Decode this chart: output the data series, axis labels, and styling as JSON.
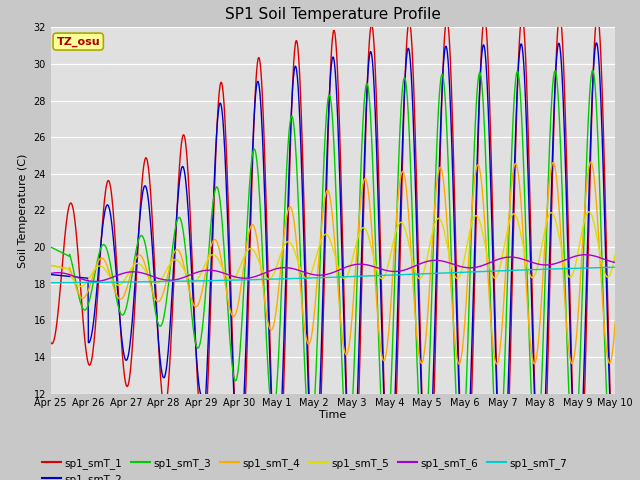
{
  "title": "SP1 Soil Temperature Profile",
  "xlabel": "Time",
  "ylabel": "Soil Temperature (C)",
  "ylim": [
    12,
    32
  ],
  "yticks": [
    12,
    14,
    16,
    18,
    20,
    22,
    24,
    26,
    28,
    30,
    32
  ],
  "annotation_text": "TZ_osu",
  "annotation_bg": "#ffff99",
  "annotation_edge": "#aaaa00",
  "annotation_text_color": "#aa0000",
  "series_colors": {
    "sp1_smT_1": "#dd0000",
    "sp1_smT_2": "#0000cc",
    "sp1_smT_3": "#00cc00",
    "sp1_smT_4": "#ffaa00",
    "sp1_smT_5": "#dddd00",
    "sp1_smT_6": "#aa00cc",
    "sp1_smT_7": "#00cccc"
  },
  "bg_color": "#c8c8c8",
  "plot_bg_color": "#e0e0e0",
  "xtick_labels": [
    "Apr 25",
    "Apr 26",
    "Apr 27",
    "Apr 28",
    "Apr 29",
    "Apr 30",
    "May 1",
    "May 2",
    "May 3",
    "May 4",
    "May 5",
    "May 6",
    "May 7",
    "May 8",
    "May 9",
    "May 10"
  ]
}
